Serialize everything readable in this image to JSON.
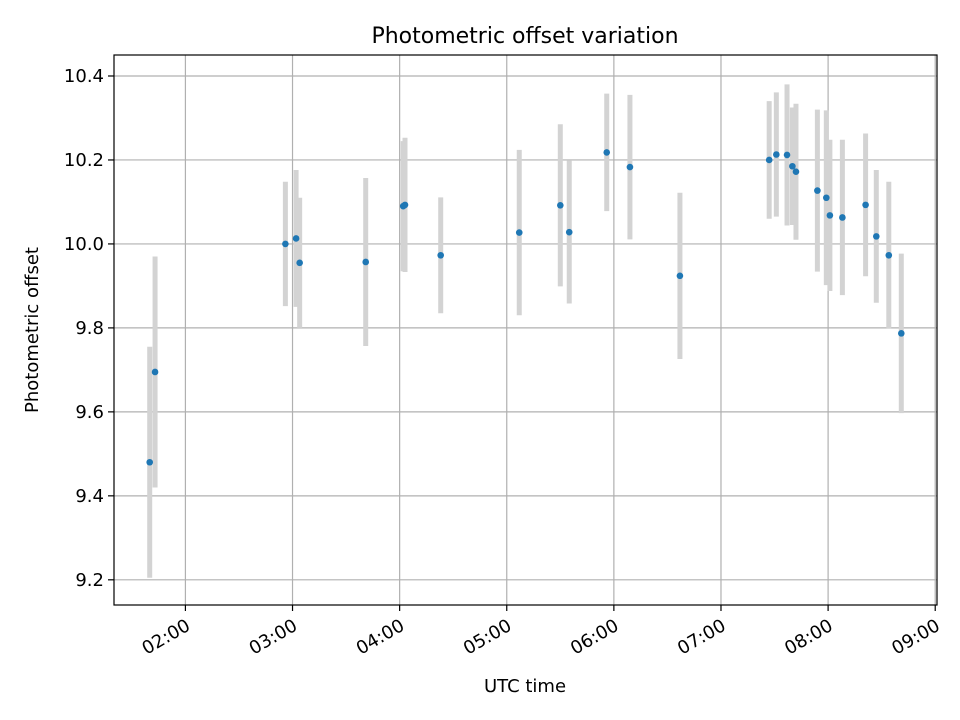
{
  "chart_data": {
    "type": "scatter",
    "title": "Photometric offset variation",
    "xlabel": "UTC time",
    "ylabel": "Photometric offset",
    "x_unit": "UTC time (HH:MM)",
    "xlim": [
      "01:20",
      "09:01"
    ],
    "ylim": [
      9.14,
      10.45
    ],
    "x_ticks": [
      "02:00",
      "03:00",
      "04:00",
      "05:00",
      "06:00",
      "07:00",
      "08:00",
      "09:00"
    ],
    "y_ticks": [
      9.2,
      9.4,
      9.6,
      9.8,
      10.0,
      10.2,
      10.4
    ],
    "y_tick_labels": [
      "9.2",
      "9.4",
      "9.6",
      "9.8",
      "10.0",
      "10.2",
      "10.4"
    ],
    "grid": true,
    "marker_color": "#1f77b4",
    "errorbar_color": "#d3d3d3",
    "points": [
      {
        "time": "01:40",
        "y": 9.48,
        "yerr": 0.275
      },
      {
        "time": "01:43",
        "y": 9.695,
        "yerr": 0.275
      },
      {
        "time": "02:56",
        "y": 10.0,
        "yerr": 0.148
      },
      {
        "time": "03:02",
        "y": 10.013,
        "yerr": 0.163
      },
      {
        "time": "03:04",
        "y": 9.955,
        "yerr": 0.155
      },
      {
        "time": "03:41",
        "y": 9.957,
        "yerr": 0.2
      },
      {
        "time": "04:02",
        "y": 10.09,
        "yerr": 0.155
      },
      {
        "time": "04:03",
        "y": 10.093,
        "yerr": 0.16
      },
      {
        "time": "04:23",
        "y": 9.973,
        "yerr": 0.138
      },
      {
        "time": "05:07",
        "y": 10.027,
        "yerr": 0.197
      },
      {
        "time": "05:30",
        "y": 10.092,
        "yerr": 0.193
      },
      {
        "time": "05:35",
        "y": 10.028,
        "yerr": 0.17
      },
      {
        "time": "05:56",
        "y": 10.218,
        "yerr": 0.14
      },
      {
        "time": "06:09",
        "y": 10.183,
        "yerr": 0.172
      },
      {
        "time": "06:37",
        "y": 9.924,
        "yerr": 0.198
      },
      {
        "time": "07:27",
        "y": 10.2,
        "yerr": 0.14
      },
      {
        "time": "07:31",
        "y": 10.213,
        "yerr": 0.148
      },
      {
        "time": "07:37",
        "y": 10.212,
        "yerr": 0.168
      },
      {
        "time": "07:40",
        "y": 10.185,
        "yerr": 0.14
      },
      {
        "time": "07:42",
        "y": 10.172,
        "yerr": 0.162
      },
      {
        "time": "07:54",
        "y": 10.127,
        "yerr": 0.193
      },
      {
        "time": "07:59",
        "y": 10.11,
        "yerr": 0.208
      },
      {
        "time": "08:01",
        "y": 10.068,
        "yerr": 0.18
      },
      {
        "time": "08:08",
        "y": 10.063,
        "yerr": 0.185
      },
      {
        "time": "08:21",
        "y": 10.093,
        "yerr": 0.17
      },
      {
        "time": "08:27",
        "y": 10.018,
        "yerr": 0.158
      },
      {
        "time": "08:34",
        "y": 9.973,
        "yerr": 0.175
      },
      {
        "time": "08:41",
        "y": 9.787,
        "yerr": 0.19
      }
    ]
  }
}
